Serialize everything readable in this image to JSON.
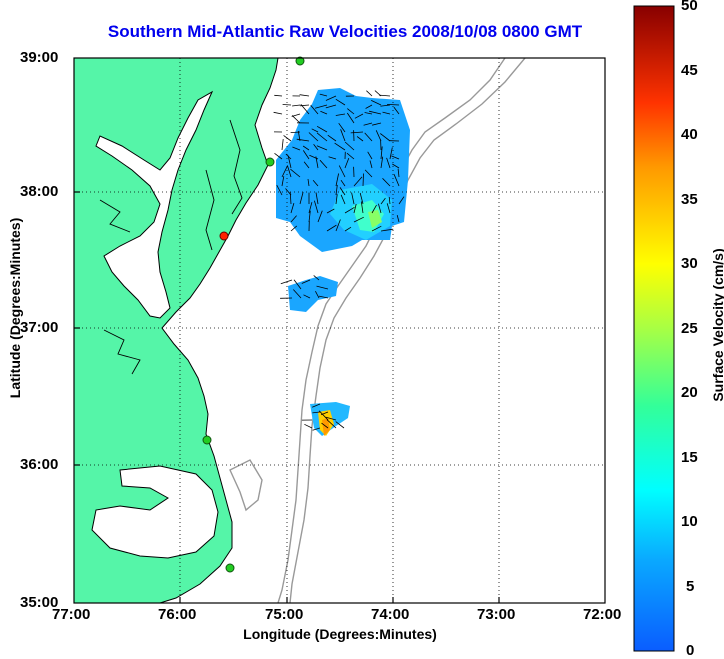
{
  "title": "Southern Mid-Atlantic Raw Velocities 2008/10/08 0800 GMT",
  "map": {
    "xlabel": "Longitude (Degrees:Minutes)",
    "ylabel": "Latitude (Degrees:Minutes)",
    "x_ticks": [
      "77:00",
      "76:00",
      "75:00",
      "74:00",
      "73:00",
      "72:00"
    ],
    "y_ticks": [
      "39:00",
      "38:00",
      "37:00",
      "36:00",
      "35:00"
    ],
    "lon_range": [
      -77,
      -72
    ],
    "lat_range": [
      35,
      39
    ],
    "grid": "dotted",
    "land_color": "#55f5a8",
    "water_color": "#ffffff",
    "bathymetry_color": "#999999",
    "coastline_color": "#000000",
    "stations": [
      {
        "lon": -74.88,
        "lat": 38.96,
        "color": "#22cc22"
      },
      {
        "lon": -75.14,
        "lat": 38.21,
        "color": "#22cc22"
      },
      {
        "lon": -75.52,
        "lat": 37.67,
        "color": "#ff2200"
      },
      {
        "lon": -75.7,
        "lat": 36.18,
        "color": "#22cc22"
      },
      {
        "lon": -75.52,
        "lat": 35.25,
        "color": "#22cc22"
      }
    ]
  },
  "colorbar": {
    "label": "Surface Velocity (cm/s)",
    "ticks": [
      "50",
      "45",
      "40",
      "35",
      "30",
      "25",
      "20",
      "15",
      "10",
      "5",
      "0"
    ],
    "range": [
      0,
      50
    ],
    "colormap": "jet"
  }
}
